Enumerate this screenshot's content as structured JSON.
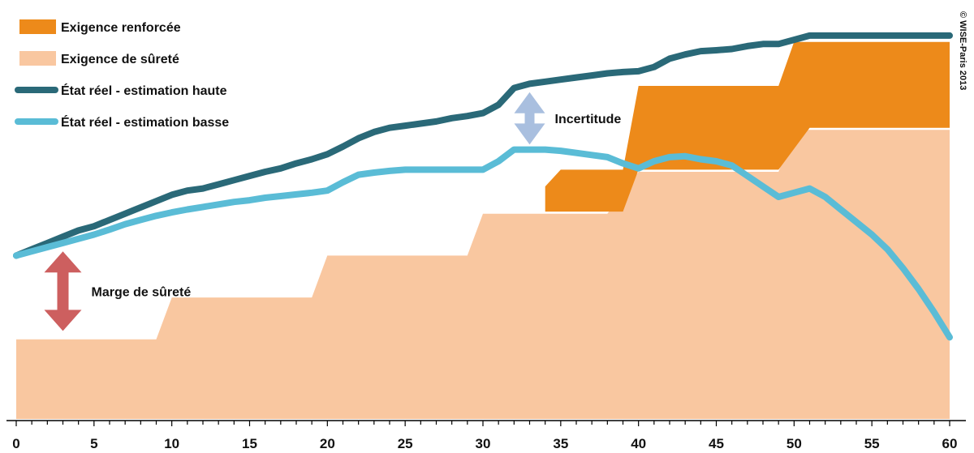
{
  "chart_data": {
    "type": "area",
    "xlim": [
      0,
      60
    ],
    "ylim": [
      0,
      100
    ],
    "x_ticks": [
      0,
      5,
      10,
      15,
      20,
      25,
      30,
      35,
      40,
      45,
      50,
      55,
      60
    ],
    "grid": false,
    "legend_position": "top-left",
    "title": "",
    "xlabel": "",
    "ylabel": "",
    "series": [
      {
        "name": "Exigence renforcée",
        "kind": "area",
        "color": "#ED8A1A",
        "points": [
          [
            34,
            55.5
          ],
          [
            35,
            59.5
          ],
          [
            38,
            59.5
          ],
          [
            39,
            59.5
          ],
          [
            40,
            79.5
          ],
          [
            49,
            79.5
          ],
          [
            50,
            90
          ],
          [
            60,
            90
          ],
          [
            60,
            69.5
          ],
          [
            51,
            69.5
          ],
          [
            49,
            59.5
          ],
          [
            40,
            59.5
          ],
          [
            39,
            49.5
          ],
          [
            34,
            49.5
          ]
        ]
      },
      {
        "name": "Exigence de sûreté",
        "kind": "area",
        "color": "#F9C7A0",
        "points": [
          [
            0,
            19
          ],
          [
            9,
            19
          ],
          [
            10,
            29
          ],
          [
            19,
            29
          ],
          [
            20,
            39
          ],
          [
            29,
            39
          ],
          [
            30,
            49
          ],
          [
            38,
            49
          ],
          [
            40,
            59
          ],
          [
            49,
            59
          ],
          [
            50,
            69
          ],
          [
            60,
            69
          ],
          [
            60,
            0
          ],
          [
            0,
            0
          ]
        ]
      },
      {
        "name": "État réel - estimation haute",
        "kind": "line",
        "color": "#2A6978",
        "points": [
          [
            0,
            39
          ],
          [
            1,
            40.5
          ],
          [
            2,
            42
          ],
          [
            3,
            43.5
          ],
          [
            4,
            45
          ],
          [
            5,
            46
          ],
          [
            6,
            47.5
          ],
          [
            7,
            49
          ],
          [
            8,
            50.5
          ],
          [
            9,
            52
          ],
          [
            10,
            53.5
          ],
          [
            11,
            54.5
          ],
          [
            12,
            55
          ],
          [
            13,
            56
          ],
          [
            14,
            57
          ],
          [
            15,
            58
          ],
          [
            16,
            59
          ],
          [
            17,
            59.8
          ],
          [
            18,
            61
          ],
          [
            19,
            62
          ],
          [
            20,
            63.2
          ],
          [
            21,
            65
          ],
          [
            22,
            67
          ],
          [
            23,
            68.5
          ],
          [
            24,
            69.5
          ],
          [
            25,
            70
          ],
          [
            26,
            70.5
          ],
          [
            27,
            71
          ],
          [
            28,
            71.8
          ],
          [
            29,
            72.3
          ],
          [
            30,
            73
          ],
          [
            31,
            75
          ],
          [
            32,
            79
          ],
          [
            33,
            80
          ],
          [
            34,
            80.5
          ],
          [
            35,
            81
          ],
          [
            36,
            81.5
          ],
          [
            37,
            82
          ],
          [
            38,
            82.5
          ],
          [
            39,
            82.8
          ],
          [
            40,
            83
          ],
          [
            41,
            84
          ],
          [
            42,
            86
          ],
          [
            43,
            87
          ],
          [
            44,
            87.8
          ],
          [
            45,
            88
          ],
          [
            46,
            88.3
          ],
          [
            47,
            89
          ],
          [
            48,
            89.5
          ],
          [
            49,
            89.5
          ],
          [
            50,
            90.5
          ],
          [
            51,
            91.5
          ],
          [
            60,
            91.5
          ]
        ]
      },
      {
        "name": "État réel - estimation basse",
        "kind": "line",
        "color": "#5ABCD6",
        "points": [
          [
            0,
            39
          ],
          [
            1,
            40
          ],
          [
            2,
            41
          ],
          [
            3,
            42
          ],
          [
            4,
            43
          ],
          [
            5,
            44
          ],
          [
            6,
            45.2
          ],
          [
            7,
            46.5
          ],
          [
            8,
            47.5
          ],
          [
            9,
            48.5
          ],
          [
            10,
            49.3
          ],
          [
            11,
            50
          ],
          [
            12,
            50.6
          ],
          [
            13,
            51.2
          ],
          [
            14,
            51.8
          ],
          [
            15,
            52.2
          ],
          [
            16,
            52.8
          ],
          [
            17,
            53.2
          ],
          [
            18,
            53.6
          ],
          [
            19,
            54
          ],
          [
            20,
            54.5
          ],
          [
            21,
            56.5
          ],
          [
            22,
            58.3
          ],
          [
            23,
            58.8
          ],
          [
            24,
            59.2
          ],
          [
            25,
            59.5
          ],
          [
            26,
            59.5
          ],
          [
            27,
            59.5
          ],
          [
            28,
            59.5
          ],
          [
            29,
            59.5
          ],
          [
            30,
            59.5
          ],
          [
            31,
            61.5
          ],
          [
            32,
            64.3
          ],
          [
            33,
            64.3
          ],
          [
            34,
            64.3
          ],
          [
            35,
            64
          ],
          [
            36,
            63.5
          ],
          [
            37,
            63
          ],
          [
            38,
            62.5
          ],
          [
            39,
            61
          ],
          [
            40,
            59.8
          ],
          [
            41,
            61.5
          ],
          [
            42,
            62.5
          ],
          [
            43,
            62.7
          ],
          [
            44,
            62
          ],
          [
            45,
            61.5
          ],
          [
            46,
            60.5
          ],
          [
            47,
            58
          ],
          [
            48,
            55.5
          ],
          [
            49,
            53
          ],
          [
            50,
            54
          ],
          [
            51,
            55
          ],
          [
            52,
            53
          ],
          [
            53,
            50
          ],
          [
            54,
            47
          ],
          [
            55,
            44
          ],
          [
            56,
            40.5
          ],
          [
            57,
            36
          ],
          [
            58,
            31
          ],
          [
            59,
            25.5
          ],
          [
            60,
            19.5
          ]
        ]
      }
    ],
    "annotations": [
      {
        "text": "Marge de sûreté",
        "type": "double-arrow",
        "color": "#CD5F5F",
        "x": 3,
        "y_from": 21,
        "y_to": 40
      },
      {
        "text": "Incertitude",
        "type": "double-arrow",
        "color": "#A9BFDF",
        "x": 33,
        "y_from": 65.5,
        "y_to": 78
      }
    ],
    "copyright": "© WISE-Paris 2013"
  }
}
